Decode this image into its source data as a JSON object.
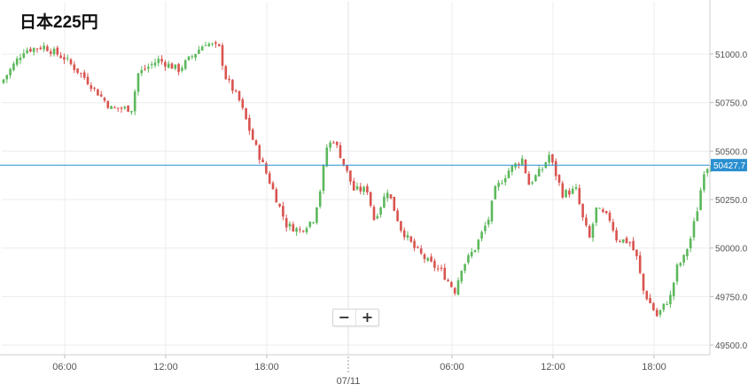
{
  "title": "日本225円",
  "zoom": {
    "minus_label": "−",
    "plus_label": "+"
  },
  "colors": {
    "up": "#5cb85c",
    "down": "#d9534f",
    "price_line": "#2a8fd0",
    "grid": "#ececec",
    "axis_text": "#555555"
  },
  "chart_data": {
    "type": "candlestick",
    "title": "日本225円",
    "current_price": 50427.7,
    "current_price_label": "50427.7",
    "y_ticks": [
      "51000.0",
      "50750.0",
      "50500.0",
      "50250.0",
      "50000.0",
      "49750.0",
      "49500.0"
    ],
    "y_tick_values": [
      51000,
      50750,
      50500,
      50250,
      50000,
      49750,
      49500
    ],
    "ylim": [
      49450,
      51270
    ],
    "x_ticks": [
      "06:00",
      "12:00",
      "18:00",
      "06:00",
      "12:00",
      "18:00"
    ],
    "date_label": "07/11",
    "keypoints": [
      [
        0,
        50870
      ],
      [
        6,
        51020
      ],
      [
        12,
        51040
      ],
      [
        18,
        50980
      ],
      [
        24,
        50880
      ],
      [
        32,
        50720
      ],
      [
        38,
        50720
      ],
      [
        40,
        50900
      ],
      [
        46,
        50970
      ],
      [
        52,
        50920
      ],
      [
        60,
        51060
      ],
      [
        64,
        51030
      ],
      [
        66,
        50880
      ],
      [
        70,
        50760
      ],
      [
        74,
        50560
      ],
      [
        80,
        50300
      ],
      [
        84,
        50120
      ],
      [
        88,
        50090
      ],
      [
        92,
        50150
      ],
      [
        94,
        50300
      ],
      [
        96,
        50520
      ],
      [
        98,
        50560
      ],
      [
        100,
        50480
      ],
      [
        104,
        50300
      ],
      [
        108,
        50300
      ],
      [
        110,
        50150
      ],
      [
        112,
        50220
      ],
      [
        114,
        50300
      ],
      [
        118,
        50100
      ],
      [
        122,
        50000
      ],
      [
        126,
        49930
      ],
      [
        130,
        49880
      ],
      [
        134,
        49780
      ],
      [
        136,
        49900
      ],
      [
        140,
        50000
      ],
      [
        144,
        50150
      ],
      [
        146,
        50300
      ],
      [
        150,
        50400
      ],
      [
        154,
        50460
      ],
      [
        156,
        50330
      ],
      [
        160,
        50410
      ],
      [
        162,
        50480
      ],
      [
        166,
        50280
      ],
      [
        170,
        50300
      ],
      [
        172,
        50150
      ],
      [
        174,
        50050
      ],
      [
        176,
        50200
      ],
      [
        180,
        50150
      ],
      [
        182,
        50050
      ],
      [
        186,
        50030
      ],
      [
        188,
        49950
      ],
      [
        190,
        49780
      ],
      [
        194,
        49650
      ],
      [
        198,
        49750
      ],
      [
        200,
        49900
      ],
      [
        202,
        49950
      ],
      [
        204,
        50050
      ],
      [
        206,
        50200
      ],
      [
        208,
        50400
      ],
      [
        210,
        50440
      ]
    ]
  }
}
